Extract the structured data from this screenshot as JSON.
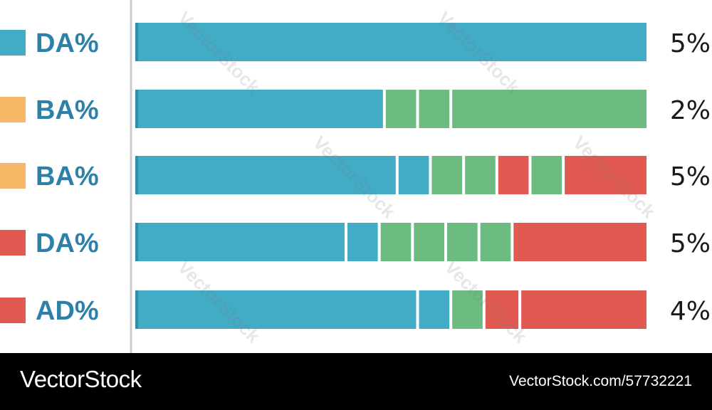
{
  "colors": {
    "blue": "#42abc6",
    "green": "#6cbc82",
    "red": "#e15a52",
    "orange": "#f6b866",
    "label_blue": "#2d80a8",
    "axis": "#cccccc"
  },
  "chart_data": {
    "type": "bar",
    "stacked": true,
    "orientation": "horizontal",
    "categories": [
      "DA%",
      "BA%",
      "BA%",
      "DA%",
      "AD%"
    ],
    "category_swatch_colors": [
      "#42abc6",
      "#f6b866",
      "#f6b866",
      "#e15a52",
      "#e15a52"
    ],
    "value_labels": [
      "5%",
      "2%",
      "5%",
      "5%",
      "4%"
    ],
    "rows": [
      {
        "segments": [
          {
            "color": "#42abc6",
            "value": 100
          }
        ]
      },
      {
        "segments": [
          {
            "color": "#42abc6",
            "value": 49
          },
          {
            "color": "#6cbc82",
            "value": 6.5
          },
          {
            "color": "#6cbc82",
            "value": 6.5
          },
          {
            "color": "#6cbc82",
            "value": 38
          }
        ]
      },
      {
        "segments": [
          {
            "color": "#42abc6",
            "value": 51.5
          },
          {
            "color": "#42abc6",
            "value": 6.5
          },
          {
            "color": "#6cbc82",
            "value": 6.5
          },
          {
            "color": "#6cbc82",
            "value": 6.5
          },
          {
            "color": "#e15a52",
            "value": 6.5
          },
          {
            "color": "#6cbc82",
            "value": 6.5
          },
          {
            "color": "#e15a52",
            "value": 16
          }
        ]
      },
      {
        "segments": [
          {
            "color": "#42abc6",
            "value": 41.5
          },
          {
            "color": "#42abc6",
            "value": 6.5
          },
          {
            "color": "#6cbc82",
            "value": 6.5
          },
          {
            "color": "#6cbc82",
            "value": 6.5
          },
          {
            "color": "#6cbc82",
            "value": 6.5
          },
          {
            "color": "#6cbc82",
            "value": 6.5
          },
          {
            "color": "#e15a52",
            "value": 26
          }
        ]
      },
      {
        "segments": [
          {
            "color": "#42abc6",
            "value": 55.5
          },
          {
            "color": "#42abc6",
            "value": 6.5
          },
          {
            "color": "#6cbc82",
            "value": 6.5
          },
          {
            "color": "#e15a52",
            "value": 7
          },
          {
            "color": "#e15a52",
            "value": 24.5
          }
        ]
      }
    ],
    "xlim": [
      0,
      100
    ]
  },
  "footer": {
    "brand": "VectorStock",
    "image_id": "VectorStock.com/57732221"
  },
  "watermark": "VectorStock"
}
